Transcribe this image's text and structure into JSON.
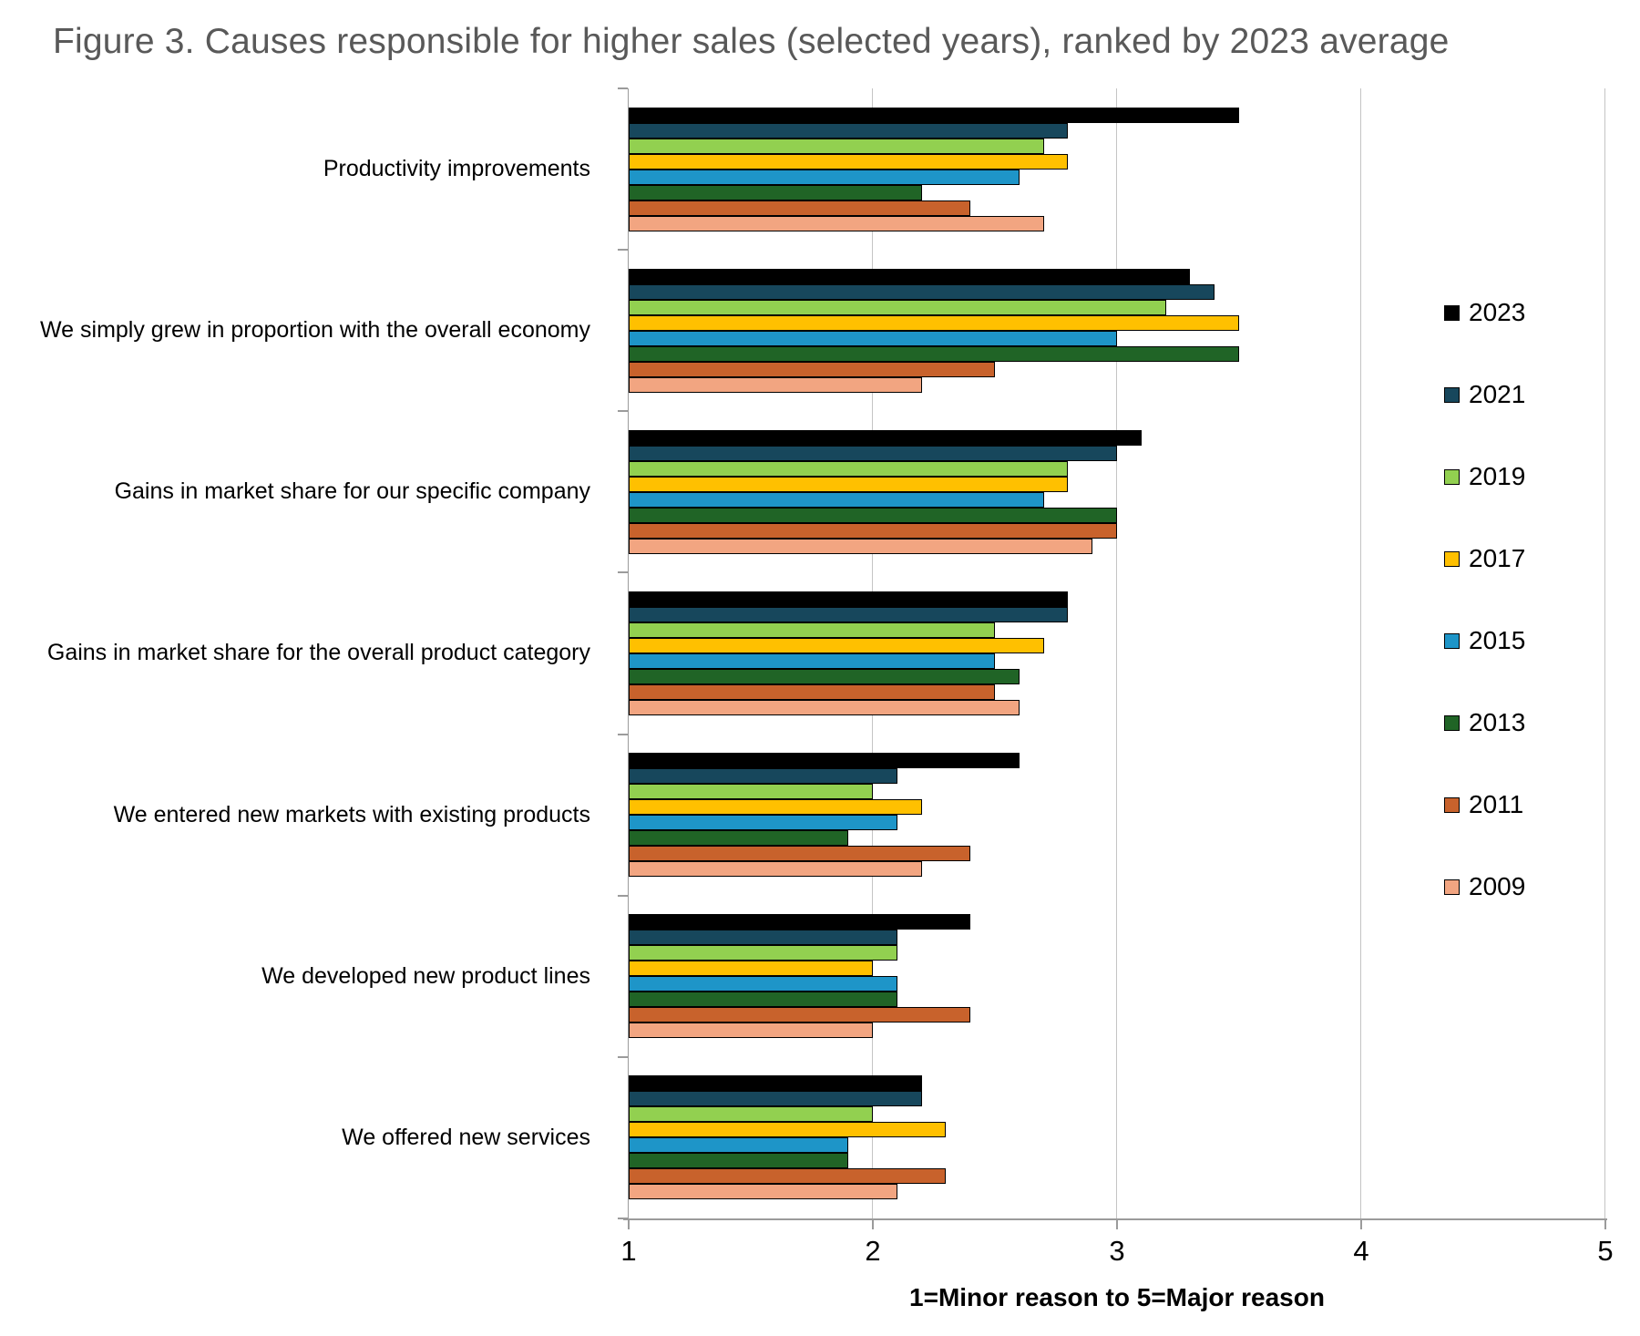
{
  "title": "Figure 3. Causes responsible for higher sales (selected years), ranked by 2023 average",
  "chart_data": {
    "type": "bar",
    "orientation": "horizontal",
    "title": "Figure 3. Causes responsible for higher sales (selected years), ranked by 2023 average",
    "xlabel": "1=Minor reason to 5=Major reason",
    "xlim": [
      1,
      5
    ],
    "x_ticks": [
      1,
      2,
      3,
      4,
      5
    ],
    "grid": "vertical",
    "legend_position": "right",
    "categories": [
      "Productivity improvements",
      "We simply grew in proportion with the overall economy",
      "Gains in market share for our specific company",
      "Gains in market share for the overall product category",
      "We entered new markets with existing products",
      "We developed new product lines",
      "We offered new services"
    ],
    "series": [
      {
        "name": "2023",
        "color": "#000000",
        "values": [
          3.5,
          3.3,
          3.1,
          2.8,
          2.6,
          2.4,
          2.2
        ]
      },
      {
        "name": "2021",
        "color": "#17475c",
        "values": [
          2.8,
          3.4,
          3.0,
          2.8,
          2.1,
          2.1,
          2.2
        ]
      },
      {
        "name": "2019",
        "color": "#92d050",
        "values": [
          2.7,
          3.2,
          2.8,
          2.5,
          2.0,
          2.1,
          2.0
        ]
      },
      {
        "name": "2017",
        "color": "#ffc000",
        "values": [
          2.8,
          3.5,
          2.8,
          2.7,
          2.2,
          2.0,
          2.3
        ]
      },
      {
        "name": "2015",
        "color": "#1e95c8",
        "values": [
          2.6,
          3.0,
          2.7,
          2.5,
          2.1,
          2.1,
          1.9
        ]
      },
      {
        "name": "2013",
        "color": "#206426",
        "values": [
          2.2,
          3.5,
          3.0,
          2.6,
          1.9,
          2.1,
          1.9
        ]
      },
      {
        "name": "2011",
        "color": "#c8622c",
        "values": [
          2.4,
          2.5,
          3.0,
          2.5,
          2.4,
          2.4,
          2.3
        ]
      },
      {
        "name": "2009",
        "color": "#f2a581",
        "values": [
          2.7,
          2.2,
          2.9,
          2.6,
          2.2,
          2.0,
          2.1
        ]
      }
    ]
  },
  "style_colors": {
    "title_text": "#595959",
    "gridline": "#c4c4c4",
    "axis_line": "#9b9b9b",
    "bar_outline": "#000000"
  }
}
